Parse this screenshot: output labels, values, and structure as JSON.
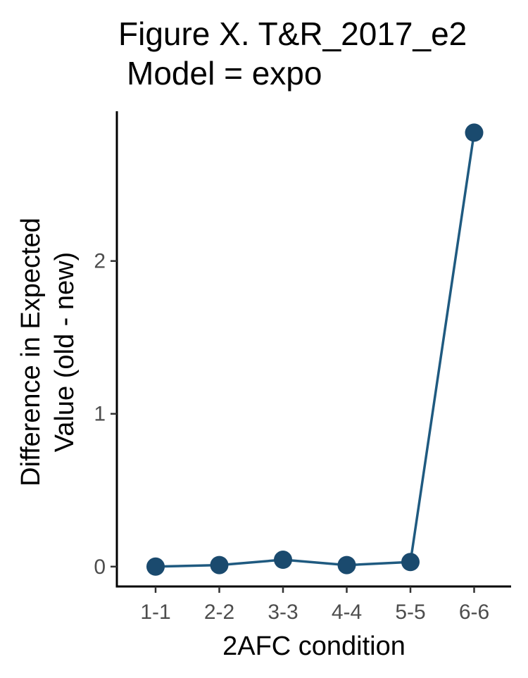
{
  "title_line1": "Figure X. T&R_2017_e2",
  "title_line2": "Model = expo",
  "chart_data": {
    "type": "line",
    "title": "Figure X. T&R_2017_e2 Model = expo",
    "xlabel": "2AFC condition",
    "ylabel_line1": "Difference in Expected",
    "ylabel_line2": "Value (old - new)",
    "categories": [
      "1-1",
      "2-2",
      "3-3",
      "4-4",
      "5-5",
      "6-6"
    ],
    "values": [
      0.0,
      0.01,
      0.045,
      0.01,
      0.03,
      2.84
    ],
    "yticks": [
      0,
      1,
      2
    ],
    "ylim": [
      -0.13,
      2.98
    ],
    "grid": false,
    "legend": "none",
    "color": "#1f5a80",
    "marker_color": "#1a4a6e"
  }
}
